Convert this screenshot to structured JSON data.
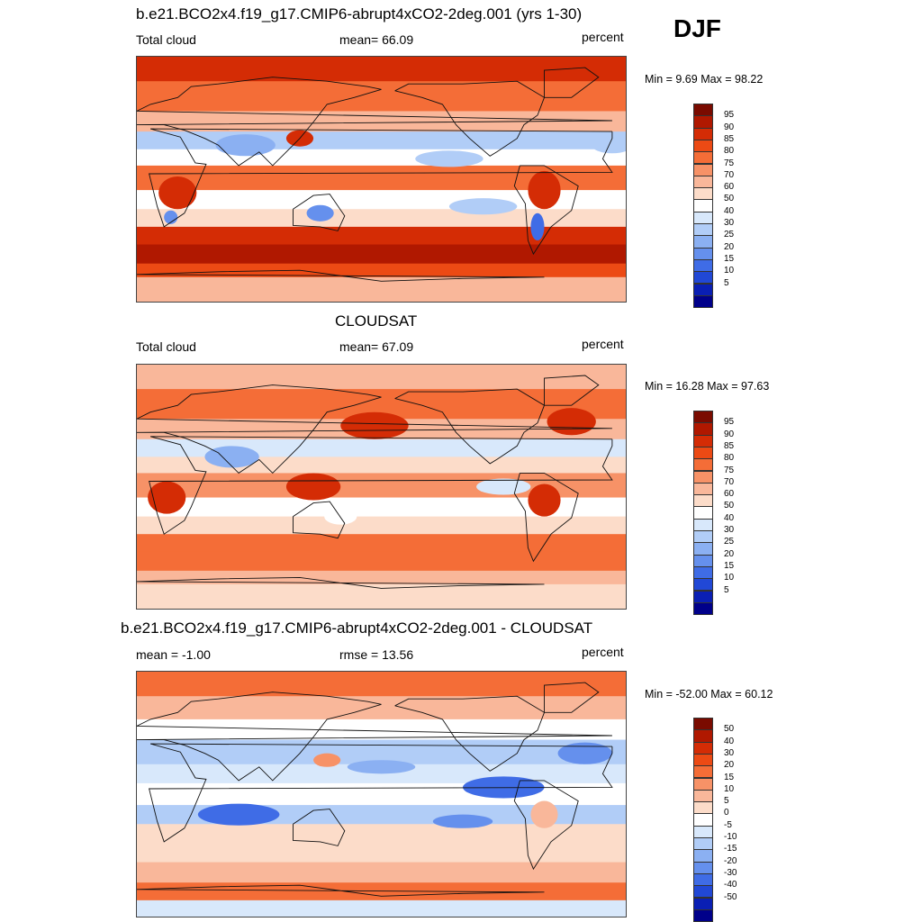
{
  "season": "DJF",
  "panels": [
    {
      "id": "model",
      "title": "b.e21.BCO2x4.f19_g17.CMIP6-abrupt4xCO2-2deg.001 (yrs 1-30)",
      "left_label": "Total cloud",
      "center_label": "mean=  66.09",
      "right_label": "percent",
      "minmax": "Min =   9.69 Max =  98.22",
      "palette": "absolute"
    },
    {
      "id": "obs",
      "title": "CLOUDSAT",
      "left_label": "Total cloud",
      "center_label": "mean=  67.09",
      "right_label": "percent",
      "minmax": "Min =  16.28 Max =  97.63",
      "palette": "absolute"
    },
    {
      "id": "diff",
      "title": "b.e21.BCO2x4.f19_g17.CMIP6-abrupt4xCO2-2deg.001 - CLOUDSAT",
      "left_label": "mean =  -1.00",
      "center_label": "rmse =  13.56",
      "right_label": "percent",
      "minmax": "Min = -52.00 Max =  60.12",
      "palette": "difference"
    }
  ],
  "colorbars": {
    "absolute": {
      "labels": [
        "95",
        "90",
        "85",
        "80",
        "75",
        "70",
        "60",
        "50",
        "40",
        "30",
        "25",
        "20",
        "15",
        "10",
        "5"
      ],
      "colors": [
        "#7a0b00",
        "#b01800",
        "#d42c05",
        "#ec4a14",
        "#f46d37",
        "#f79267",
        "#f9b79a",
        "#fcdcc9",
        "#ffffff",
        "#d8e8fb",
        "#b1cdf7",
        "#8bb0f2",
        "#6590ed",
        "#3f6ce6",
        "#2148d6",
        "#0a1fb4",
        "#00008a"
      ]
    },
    "difference": {
      "labels": [
        "50",
        "40",
        "30",
        "20",
        "15",
        "10",
        "5",
        "0",
        "-5",
        "-10",
        "-15",
        "-20",
        "-30",
        "-40",
        "-50"
      ],
      "colors": [
        "#7a0b00",
        "#b01800",
        "#d42c05",
        "#ec4a14",
        "#f46d37",
        "#f79267",
        "#f9b79a",
        "#fcdcc9",
        "#ffffff",
        "#d8e8fb",
        "#b1cdf7",
        "#8bb0f2",
        "#6590ed",
        "#3f6ce6",
        "#2148d6",
        "#0a1fb4",
        "#00008a"
      ]
    }
  },
  "map_fields": {
    "model": {
      "bands": [
        {
          "lat": [
            90,
            72
          ],
          "value": 93
        },
        {
          "lat": [
            72,
            50
          ],
          "value": 82
        },
        {
          "lat": [
            50,
            35
          ],
          "value": 72
        },
        {
          "lat": [
            35,
            22
          ],
          "value": 38
        },
        {
          "lat": [
            22,
            10
          ],
          "value": 58
        },
        {
          "lat": [
            10,
            -8
          ],
          "value": 80
        },
        {
          "lat": [
            -8,
            -22
          ],
          "value": 55
        },
        {
          "lat": [
            -22,
            -35
          ],
          "value": 65
        },
        {
          "lat": [
            -35,
            -48
          ],
          "value": 90
        },
        {
          "lat": [
            -48,
            -62
          ],
          "value": 96
        },
        {
          "lat": [
            -62,
            -72
          ],
          "value": 88
        },
        {
          "lat": [
            -72,
            -90
          ],
          "value": 70
        }
      ],
      "blobs": [
        {
          "lon": 30,
          "lat": -10,
          "rlon": 14,
          "rlat": 12,
          "value": 92
        },
        {
          "lon": 25,
          "lat": -28,
          "rlon": 5,
          "rlat": 5,
          "value": 20
        },
        {
          "lon": 120,
          "lat": 30,
          "rlon": 10,
          "rlat": 6,
          "value": 90
        },
        {
          "lon": 80,
          "lat": 25,
          "rlon": 22,
          "rlat": 8,
          "value": 25
        },
        {
          "lon": 135,
          "lat": -25,
          "rlon": 10,
          "rlat": 6,
          "value": 20
        },
        {
          "lon": 300,
          "lat": -8,
          "rlon": 12,
          "rlat": 14,
          "value": 92
        },
        {
          "lon": 295,
          "lat": -35,
          "rlon": 5,
          "rlat": 10,
          "value": 15
        },
        {
          "lon": 230,
          "lat": 15,
          "rlon": 25,
          "rlat": 6,
          "value": 30
        },
        {
          "lon": 350,
          "lat": 25,
          "rlon": 15,
          "rlat": 6,
          "value": 35
        },
        {
          "lon": 255,
          "lat": -20,
          "rlon": 25,
          "rlat": 6,
          "value": 35
        }
      ]
    },
    "obs": {
      "bands": [
        {
          "lat": [
            90,
            72
          ],
          "value": 70
        },
        {
          "lat": [
            72,
            50
          ],
          "value": 80
        },
        {
          "lat": [
            50,
            35
          ],
          "value": 72
        },
        {
          "lat": [
            35,
            22
          ],
          "value": 40
        },
        {
          "lat": [
            22,
            10
          ],
          "value": 60
        },
        {
          "lat": [
            10,
            -8
          ],
          "value": 78
        },
        {
          "lat": [
            -8,
            -22
          ],
          "value": 58
        },
        {
          "lat": [
            -22,
            -35
          ],
          "value": 62
        },
        {
          "lat": [
            -35,
            -48
          ],
          "value": 80
        },
        {
          "lat": [
            -48,
            -62
          ],
          "value": 84
        },
        {
          "lat": [
            -62,
            -72
          ],
          "value": 72
        },
        {
          "lat": [
            -72,
            -90
          ],
          "value": 60
        }
      ],
      "blobs": [
        {
          "lon": 22,
          "lat": -8,
          "rlon": 14,
          "rlat": 12,
          "value": 92
        },
        {
          "lon": 130,
          "lat": 0,
          "rlon": 20,
          "rlat": 10,
          "value": 92
        },
        {
          "lon": 175,
          "lat": 45,
          "rlon": 25,
          "rlat": 10,
          "value": 90
        },
        {
          "lon": 320,
          "lat": 48,
          "rlon": 18,
          "rlat": 10,
          "value": 90
        },
        {
          "lon": 300,
          "lat": -10,
          "rlon": 12,
          "rlat": 12,
          "value": 93
        },
        {
          "lon": 70,
          "lat": 22,
          "rlon": 20,
          "rlat": 8,
          "value": 28
        },
        {
          "lon": 270,
          "lat": 0,
          "rlon": 20,
          "rlat": 6,
          "value": 45
        },
        {
          "lon": 150,
          "lat": -22,
          "rlon": 12,
          "rlat": 6,
          "value": 50
        }
      ]
    },
    "diff": {
      "bands": [
        {
          "lat": [
            90,
            72
          ],
          "value": 25
        },
        {
          "lat": [
            72,
            55
          ],
          "value": 12
        },
        {
          "lat": [
            55,
            40
          ],
          "value": 0
        },
        {
          "lat": [
            40,
            22
          ],
          "value": -8
        },
        {
          "lat": [
            22,
            8
          ],
          "value": -5
        },
        {
          "lat": [
            8,
            -8
          ],
          "value": 2
        },
        {
          "lat": [
            -8,
            -22
          ],
          "value": -8
        },
        {
          "lat": [
            -22,
            -35
          ],
          "value": 5
        },
        {
          "lat": [
            -35,
            -50
          ],
          "value": 8
        },
        {
          "lat": [
            -50,
            -65
          ],
          "value": 10
        },
        {
          "lat": [
            -65,
            -78
          ],
          "value": 20
        },
        {
          "lat": [
            -78,
            -90
          ],
          "value": -2
        }
      ],
      "blobs": [
        {
          "lon": 75,
          "lat": -15,
          "rlon": 30,
          "rlat": 8,
          "value": -28
        },
        {
          "lon": 270,
          "lat": 5,
          "rlon": 30,
          "rlat": 8,
          "value": -22
        },
        {
          "lon": 330,
          "lat": 30,
          "rlon": 20,
          "rlat": 8,
          "value": -20
        },
        {
          "lon": 240,
          "lat": -20,
          "rlon": 22,
          "rlat": 5,
          "value": -18
        },
        {
          "lon": 180,
          "lat": 20,
          "rlon": 25,
          "rlat": 5,
          "value": -12
        },
        {
          "lon": 140,
          "lat": 25,
          "rlon": 10,
          "rlat": 5,
          "value": 15
        },
        {
          "lon": 300,
          "lat": -15,
          "rlon": 10,
          "rlat": 10,
          "value": 12
        }
      ]
    }
  }
}
